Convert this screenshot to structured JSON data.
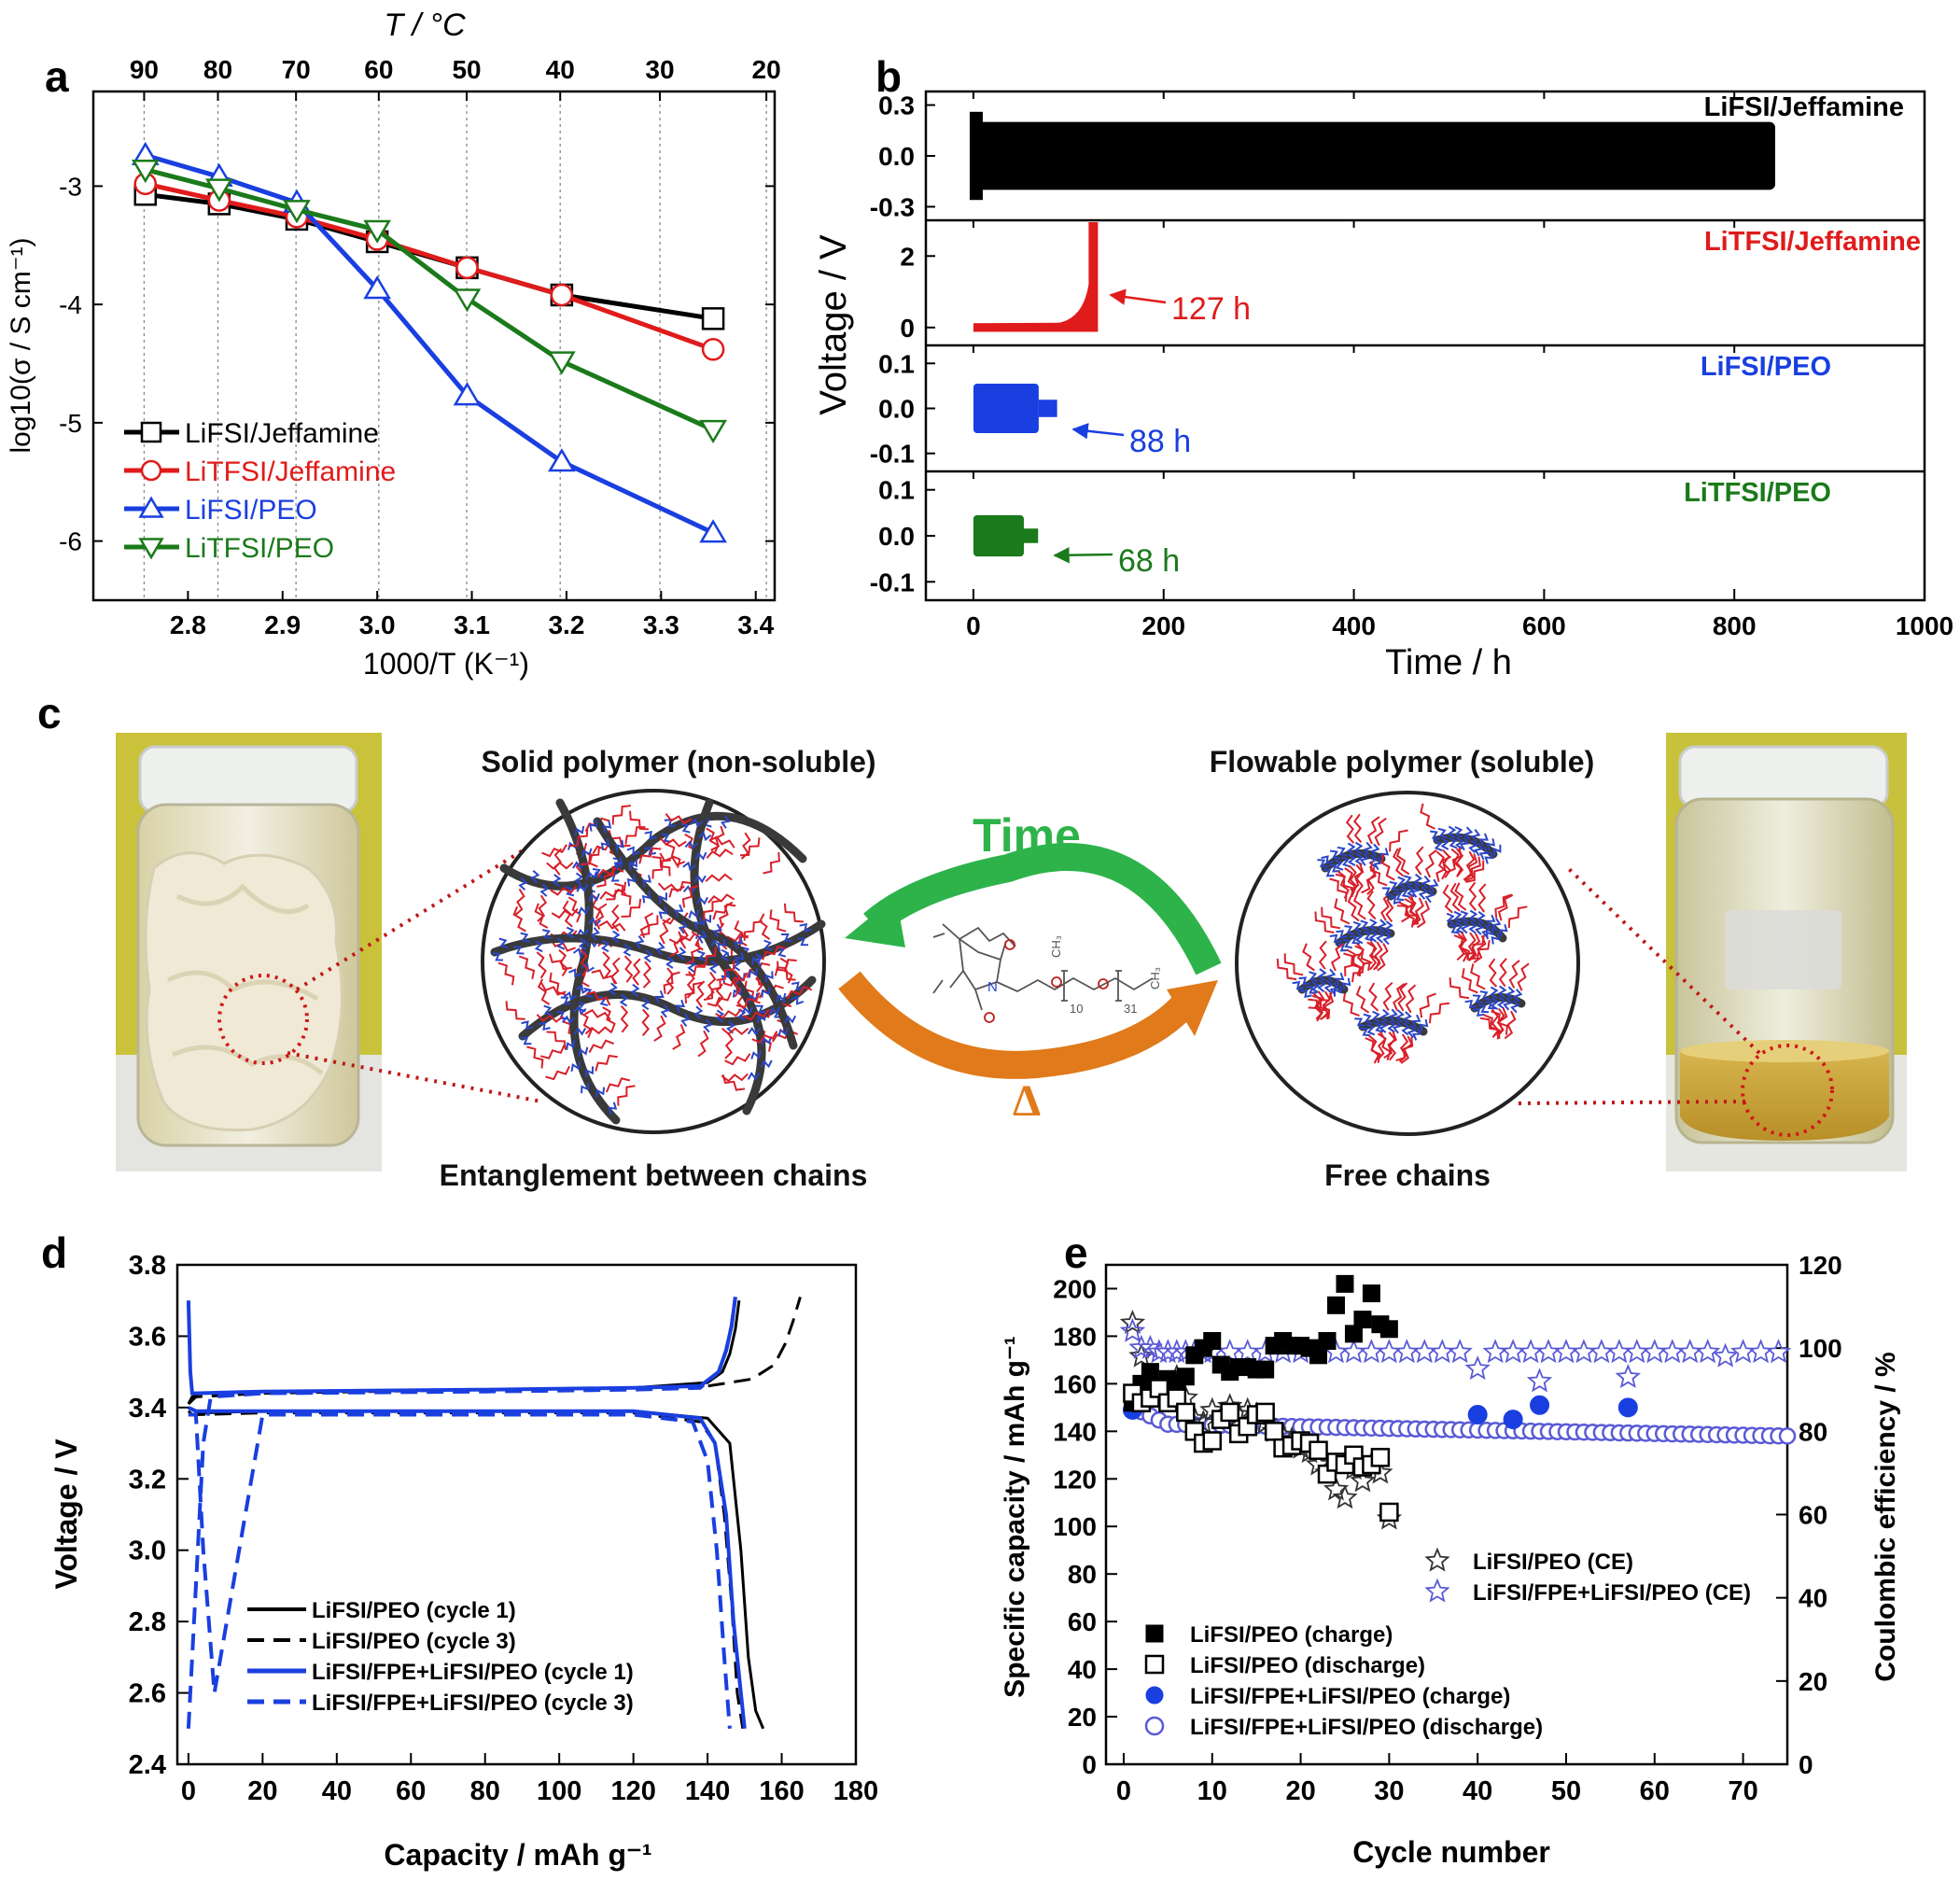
{
  "colors": {
    "black": "#000000",
    "red": "#e01b1b",
    "blue": "#1a3fe0",
    "green": "#1b7a1b",
    "purple": "#5a5ad6",
    "time_green": "#2db34a",
    "delta_orange": "#e07a1a",
    "chain_red": "#d8202a",
    "chain_blue": "#2a46c8",
    "backbone": "#3a3a3a"
  },
  "panel_labels": {
    "a": "a",
    "b": "b",
    "c": "c",
    "d": "d",
    "e": "e"
  },
  "chart_data": [
    {
      "panel": "a",
      "type": "line",
      "top_axis_label": "T / °C",
      "top_ticks": [
        "90",
        "80",
        "70",
        "60",
        "50",
        "40",
        "30",
        "20"
      ],
      "ylabel": "log10(σ / S cm⁻¹)",
      "xlabel": "1000/T (K⁻¹)",
      "xlim": [
        2.7,
        3.42
      ],
      "ylim": [
        -6.5,
        -2.2
      ],
      "xticks": [
        "2.8",
        "2.9",
        "3.0",
        "3.1",
        "3.2",
        "3.3",
        "3.4"
      ],
      "yticks": [
        "-3",
        "-4",
        "-5",
        "-6"
      ],
      "grid": "vertical dashed at temperature ticks",
      "legend_position": "lower-left",
      "series": [
        {
          "name": "LiFSI/Jeffamine",
          "marker": "square",
          "color": "#000000",
          "x": [
            2.755,
            2.833,
            2.915,
            3.0,
            3.095,
            3.195,
            3.355
          ],
          "y": [
            -3.07,
            -3.15,
            -3.28,
            -3.47,
            -3.69,
            -3.92,
            -4.12
          ]
        },
        {
          "name": "LiTFSI/Jeffamine",
          "marker": "circle",
          "color": "#e01b1b",
          "x": [
            2.755,
            2.833,
            2.915,
            3.0,
            3.095,
            3.195,
            3.355
          ],
          "y": [
            -2.98,
            -3.12,
            -3.26,
            -3.45,
            -3.69,
            -3.92,
            -4.38
          ]
        },
        {
          "name": "LiFSI/PEO",
          "marker": "triangle-up",
          "color": "#1a3fe0",
          "x": [
            2.755,
            2.833,
            2.915,
            3.0,
            3.095,
            3.195,
            3.355
          ],
          "y": [
            -2.74,
            -2.92,
            -3.14,
            -3.87,
            -4.77,
            -5.33,
            -5.93
          ]
        },
        {
          "name": "LiTFSI/PEO",
          "marker": "triangle-down",
          "color": "#1b7a1b",
          "x": [
            2.755,
            2.833,
            2.915,
            3.0,
            3.095,
            3.195,
            3.355
          ],
          "y": [
            -2.86,
            -3.02,
            -3.2,
            -3.37,
            -3.95,
            -4.48,
            -5.06
          ]
        }
      ]
    },
    {
      "panel": "b",
      "type": "line",
      "ylabel": "Voltage / V",
      "xlabel": "Time / h",
      "xlim": [
        -50,
        1000
      ],
      "xticks": [
        "0",
        "200",
        "400",
        "600",
        "800",
        "1000"
      ],
      "subplots": [
        {
          "name": "LiFSI/Jeffamine",
          "color": "#000000",
          "ylim": [
            -0.38,
            0.38
          ],
          "yticks": [
            "0.3",
            "0.0",
            "-0.3"
          ],
          "amplitude": 0.2,
          "end_time": 843,
          "annotation": ""
        },
        {
          "name": "LiTFSI/Jeffamine",
          "color": "#e01b1b",
          "ylim": [
            -0.5,
            3.0
          ],
          "yticks": [
            "2",
            "0"
          ],
          "amplitude": 0.12,
          "end_time": 127,
          "annotation": "127 h"
        },
        {
          "name": "LiFSI/PEO",
          "color": "#1a3fe0",
          "ylim": [
            -0.14,
            0.14
          ],
          "yticks": [
            "0.1",
            "0.0",
            "-0.1"
          ],
          "amplitude": 0.055,
          "end_time": 88,
          "annotation": "88 h"
        },
        {
          "name": "LiTFSI/PEO",
          "color": "#1b7a1b",
          "ylim": [
            -0.14,
            0.14
          ],
          "yticks": [
            "0.1",
            "0.0",
            "-0.1"
          ],
          "amplitude": 0.045,
          "end_time": 68,
          "annotation": "68 h"
        }
      ]
    },
    {
      "panel": "d",
      "type": "line",
      "ylabel": "Voltage / V",
      "xlabel": "Capacity / mAh g⁻¹",
      "xlim": [
        -3,
        180
      ],
      "ylim": [
        2.4,
        3.8
      ],
      "xticks": [
        "0",
        "20",
        "40",
        "60",
        "80",
        "100",
        "120",
        "140",
        "160",
        "180"
      ],
      "yticks": [
        "2.4",
        "2.6",
        "2.8",
        "3.0",
        "3.2",
        "3.4",
        "3.6",
        "3.8"
      ],
      "legend_position": "lower-left",
      "series": [
        {
          "name": "LiFSI/PEO (cycle 1)",
          "color": "#000000",
          "dash": "solid",
          "width": 3,
          "charge": {
            "x": [
              0,
              1,
              3,
              20,
              80,
              120,
              140,
              144,
              146,
              147.5,
              148.5
            ],
            "y": [
              3.41,
              3.43,
              3.44,
              3.445,
              3.45,
              3.455,
              3.47,
              3.5,
              3.55,
              3.62,
              3.7
            ]
          },
          "discharge": {
            "x": [
              0,
              1,
              3,
              20,
              80,
              120,
              140,
              146,
              149,
              151,
              153,
              155
            ],
            "y": [
              3.39,
              3.38,
              3.385,
              3.39,
              3.39,
              3.39,
              3.37,
              3.3,
              3.0,
              2.7,
              2.55,
              2.5
            ]
          }
        },
        {
          "name": "LiFSI/PEO (cycle 3)",
          "color": "#000000",
          "dash": "dashed",
          "width": 3,
          "charge": {
            "x": [
              0,
              2,
              20,
              80,
              120,
              140,
              152,
              158,
              161,
              163,
              165
            ],
            "y": [
              3.41,
              3.43,
              3.44,
              3.45,
              3.455,
              3.46,
              3.48,
              3.52,
              3.58,
              3.64,
              3.71
            ]
          },
          "discharge": {
            "x": [
              0,
              2,
              20,
              80,
              120,
              138,
              142,
              144.5,
              146.5,
              148,
              149.5
            ],
            "y": [
              3.38,
              3.38,
              3.385,
              3.385,
              3.385,
              3.36,
              3.3,
              3.1,
              2.85,
              2.6,
              2.5
            ]
          }
        },
        {
          "name": "LiFSI/FPE+LiFSI/PEO (cycle 1)",
          "color": "#1a3fe0",
          "dash": "solid",
          "width": 4,
          "charge": {
            "x": [
              0,
              0.5,
              1,
              2,
              20,
              80,
              120,
              138,
              143,
              145,
              146.5,
              147.5
            ],
            "y": [
              3.7,
              3.5,
              3.44,
              3.44,
              3.445,
              3.45,
              3.455,
              3.46,
              3.5,
              3.56,
              3.63,
              3.71
            ]
          },
          "discharge": {
            "x": [
              0,
              2,
              20,
              80,
              120,
              138,
              142,
              145,
              147,
              149,
              150
            ],
            "y": [
              3.4,
              3.39,
              3.39,
              3.39,
              3.39,
              3.37,
              3.3,
              3.1,
              2.8,
              2.6,
              2.5
            ]
          }
        },
        {
          "name": "LiFSI/FPE+LiFSI/PEO (cycle 3)",
          "color": "#1a3fe0",
          "dash": "dashed",
          "width": 4,
          "charge": {
            "x": [
              0,
              2,
              4,
              6,
              20,
              80,
              120,
              138,
              143,
              145,
              146.5,
              147.5
            ],
            "y": [
              2.5,
              2.9,
              3.3,
              3.43,
              3.44,
              3.445,
              3.45,
              3.455,
              3.5,
              3.56,
              3.63,
              3.71
            ]
          },
          "discharge": {
            "x": [
              0,
              2,
              4,
              7,
              20,
              80,
              120,
              136,
              140,
              142.5,
              144.5,
              146
            ],
            "y": [
              3.38,
              3.38,
              3.0,
              2.6,
              3.38,
              3.38,
              3.38,
              3.36,
              3.25,
              3.0,
              2.7,
              2.5
            ]
          }
        }
      ]
    },
    {
      "panel": "e",
      "type": "scatter",
      "ylabel": "Specific capacity / mAh g⁻¹",
      "ylabel_right": "Coulombic efficiency / %",
      "xlabel": "Cycle number",
      "xlim": [
        -2,
        75
      ],
      "ylim": [
        0,
        210
      ],
      "ylim_right": [
        0,
        120
      ],
      "xticks": [
        "0",
        "10",
        "20",
        "30",
        "40",
        "50",
        "60",
        "70"
      ],
      "yticks": [
        "0",
        "20",
        "40",
        "60",
        "80",
        "100",
        "120",
        "140",
        "160",
        "180",
        "200"
      ],
      "yticks_right": [
        "0",
        "20",
        "40",
        "60",
        "80",
        "100",
        "120"
      ],
      "legend_position": "lower-left",
      "series": [
        {
          "name": "LiFSI/PEO (CE)",
          "marker": "star-open",
          "color": "#333333",
          "axis": "right",
          "x": [
            1,
            2,
            3,
            4,
            5,
            6,
            7,
            8,
            9,
            10,
            11,
            12,
            13,
            14,
            15,
            16,
            17,
            18,
            19,
            20,
            21,
            22,
            23,
            24,
            25,
            26,
            27,
            28,
            29,
            30
          ],
          "y": [
            106,
            98,
            92,
            90,
            91,
            93,
            88,
            83,
            82,
            85,
            83,
            86,
            84,
            85,
            84,
            82,
            80,
            79,
            78,
            76,
            75,
            72,
            70,
            66,
            64,
            71,
            68,
            72,
            70,
            59
          ]
        },
        {
          "name": "LiFSI/FPE+LiFSI/PEO (CE)",
          "marker": "star-open",
          "color": "#5a5ad6",
          "axis": "right",
          "x": [
            1,
            2,
            3,
            4,
            5,
            6,
            7,
            8,
            9,
            10,
            12,
            14,
            16,
            18,
            20,
            22,
            24,
            26,
            28,
            30,
            32,
            34,
            36,
            38,
            40,
            42,
            44,
            46,
            47,
            48,
            50,
            52,
            54,
            56,
            57,
            58,
            60,
            62,
            64,
            66,
            68,
            70,
            72,
            74
          ],
          "y": [
            104,
            100,
            100,
            99,
            99,
            99,
            99,
            99,
            99,
            99,
            99,
            99,
            99,
            99,
            99,
            99,
            99,
            99,
            99,
            99,
            99,
            99,
            99,
            99,
            95,
            99,
            99,
            99,
            92,
            99,
            99,
            99,
            99,
            99,
            93,
            99,
            99,
            99,
            99,
            99,
            98,
            99,
            99,
            99
          ]
        },
        {
          "name": "LiFSI/PEO (charge)",
          "marker": "square-filled",
          "color": "#000000",
          "axis": "left",
          "x": [
            1,
            2,
            3,
            4,
            5,
            6,
            7,
            8,
            9,
            10,
            11,
            12,
            13,
            14,
            15,
            16,
            17,
            18,
            19,
            20,
            21,
            22,
            23,
            24,
            25,
            26,
            27,
            28,
            29,
            30
          ],
          "y": [
            152,
            160,
            165,
            158,
            162,
            160,
            163,
            172,
            175,
            178,
            168,
            165,
            167,
            167,
            166,
            166,
            176,
            178,
            176,
            176,
            175,
            172,
            178,
            193,
            202,
            181,
            187,
            198,
            185,
            183
          ]
        },
        {
          "name": "LiFSI/PEO (discharge)",
          "marker": "square-open",
          "color": "#000000",
          "axis": "left",
          "x": [
            1,
            2,
            3,
            4,
            5,
            6,
            7,
            8,
            9,
            10,
            11,
            12,
            13,
            14,
            15,
            16,
            17,
            18,
            19,
            20,
            21,
            22,
            23,
            24,
            25,
            26,
            27,
            28,
            29,
            30
          ],
          "y": [
            156,
            152,
            154,
            158,
            152,
            154,
            148,
            140,
            135,
            136,
            145,
            148,
            139,
            142,
            147,
            148,
            140,
            133,
            134,
            136,
            135,
            132,
            122,
            127,
            126,
            130,
            125,
            126,
            129,
            106
          ]
        },
        {
          "name": "LiFSI/FPE+LiFSI/PEO (charge)",
          "marker": "circle-filled",
          "color": "#1a3fe0",
          "axis": "left",
          "x": [
            1,
            40,
            44,
            47,
            57
          ],
          "y": [
            149,
            147,
            145,
            151,
            150
          ]
        },
        {
          "name": "LiFSI/FPE+LiFSI/PEO (discharge)",
          "marker": "circle-open",
          "color": "#5a5ad6",
          "axis": "left",
          "x_start": 1,
          "x_end": 75,
          "y_start": 150,
          "y_plateau": 143,
          "y_end": 138
        }
      ]
    }
  ],
  "panel_c": {
    "left_title": "Solid polymer (non-soluble)",
    "right_title": "Flowable polymer (soluble)",
    "left_caption": "Entanglement between chains",
    "right_caption": "Free chains",
    "arrow_top_label": "Time",
    "arrow_bottom_label": "Δ",
    "chem_labels": {
      "methyl_left": "CH₃",
      "methyl_right": "CH₃",
      "nitrogen": "N",
      "n1": "10",
      "n2": "31"
    }
  }
}
